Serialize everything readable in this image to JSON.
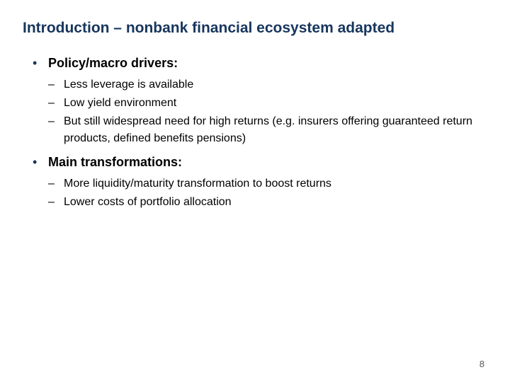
{
  "colors": {
    "title": "#17365d",
    "body": "#000000",
    "bullet": "#17365d",
    "pagenum": "#595959"
  },
  "title": "Introduction – nonbank financial ecosystem adapted",
  "page_number": "8",
  "items": [
    {
      "label": "Policy/macro drivers:",
      "children": [
        "Less leverage is available",
        "Low yield environment",
        "But still widespread need for high returns (e.g. insurers offering guaranteed return products, defined benefits pensions)"
      ]
    },
    {
      "label": "Main transformations:",
      "children": [
        "More liquidity/maturity transformation to boost returns",
        "Lower costs of portfolio allocation"
      ]
    }
  ]
}
